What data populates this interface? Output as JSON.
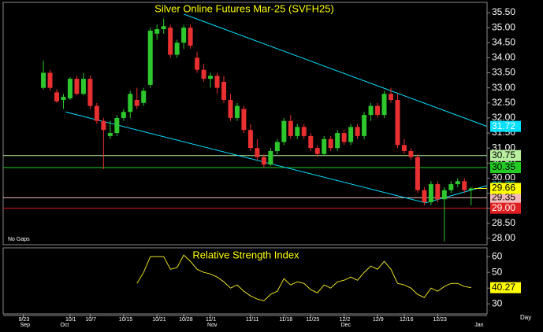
{
  "chart_data": [
    {
      "type": "candlestick",
      "title": "Silver Online Futures Mar-25 (SVFH25)",
      "note": "No Gaps",
      "x_unit": "Day",
      "categories": [
        "9/23",
        null,
        null,
        null,
        null,
        null,
        null,
        "10/1",
        null,
        null,
        "10/7",
        null,
        null,
        null,
        null,
        "10/15",
        null,
        null,
        null,
        null,
        "10/21",
        null,
        null,
        null,
        "10/28",
        null,
        null,
        null,
        "11/1",
        null,
        null,
        null,
        null,
        null,
        "11/11",
        null,
        null,
        null,
        null,
        "11/18",
        null,
        null,
        null,
        "11/25",
        null,
        null,
        null,
        null,
        "12/2",
        null,
        null,
        null,
        null,
        "12/9",
        null,
        null,
        null,
        "12/16",
        null,
        null,
        null,
        null,
        "12/23",
        null,
        null,
        null,
        null,
        null,
        null
      ],
      "months": [
        "Sep",
        null,
        null,
        null,
        null,
        null,
        "Oct",
        null,
        null,
        null,
        null,
        null,
        null,
        null,
        null,
        null,
        null,
        null,
        null,
        null,
        null,
        null,
        null,
        null,
        null,
        null,
        null,
        null,
        "Nov",
        null,
        null,
        null,
        null,
        null,
        null,
        null,
        null,
        null,
        null,
        null,
        null,
        null,
        null,
        null,
        null,
        null,
        null,
        null,
        "Dec",
        null,
        null,
        null,
        null,
        null,
        null,
        null,
        null,
        null,
        null,
        null,
        null,
        null,
        null,
        null,
        null,
        null,
        null,
        null,
        "Jan"
      ],
      "ohlc": [
        null,
        null,
        null,
        [
          33.0,
          33.9,
          32.95,
          33.5
        ],
        [
          33.5,
          33.6,
          32.9,
          33.0
        ],
        [
          32.85,
          32.95,
          32.5,
          32.55
        ],
        [
          32.6,
          32.8,
          32.3,
          32.7
        ],
        [
          32.65,
          33.35,
          32.6,
          33.3
        ],
        [
          33.3,
          33.4,
          32.75,
          32.8
        ],
        [
          32.8,
          33.5,
          32.75,
          33.3
        ],
        [
          33.3,
          33.4,
          32.3,
          32.4
        ],
        [
          32.4,
          32.5,
          31.8,
          31.9
        ],
        [
          31.9,
          32.0,
          30.3,
          31.6
        ],
        [
          31.4,
          31.9,
          31.3,
          31.5
        ],
        [
          31.5,
          32.1,
          31.4,
          32.0
        ],
        [
          32.0,
          32.3,
          31.9,
          32.2
        ],
        [
          32.2,
          32.9,
          32.0,
          32.8
        ],
        [
          32.6,
          33.0,
          32.3,
          32.4
        ],
        [
          32.5,
          33.0,
          32.4,
          32.9
        ],
        [
          33.1,
          35.0,
          33.0,
          34.9
        ],
        [
          34.8,
          35.1,
          34.6,
          34.95
        ],
        [
          34.95,
          35.3,
          34.8,
          35.05
        ],
        [
          35.0,
          35.1,
          34.0,
          34.1
        ],
        [
          34.1,
          34.6,
          34.0,
          34.5
        ],
        [
          34.5,
          35.1,
          34.3,
          35.0
        ],
        [
          35.0,
          35.1,
          34.3,
          34.4
        ],
        [
          34.0,
          34.2,
          33.5,
          33.6
        ],
        [
          33.6,
          33.8,
          33.2,
          33.3
        ],
        [
          33.3,
          33.5,
          33.0,
          33.4
        ],
        [
          33.4,
          33.5,
          32.8,
          33.0
        ],
        [
          33.2,
          33.4,
          32.5,
          32.6
        ],
        [
          32.6,
          32.8,
          31.9,
          32.0
        ],
        [
          32.0,
          32.5,
          31.9,
          32.4
        ],
        [
          32.3,
          32.4,
          31.5,
          31.6
        ],
        [
          31.6,
          31.8,
          30.9,
          31.0
        ],
        [
          31.0,
          31.3,
          30.6,
          30.7
        ],
        [
          30.7,
          30.8,
          30.35,
          30.45
        ],
        [
          30.45,
          31.0,
          30.4,
          30.9
        ],
        [
          30.9,
          31.3,
          30.8,
          31.2
        ],
        [
          31.2,
          32.0,
          31.1,
          31.9
        ],
        [
          31.9,
          32.1,
          31.3,
          31.4
        ],
        [
          31.4,
          31.8,
          31.3,
          31.7
        ],
        [
          31.7,
          31.8,
          31.3,
          31.4
        ],
        [
          31.4,
          31.5,
          30.9,
          31.0
        ],
        [
          31.0,
          31.1,
          30.7,
          30.8
        ],
        [
          30.8,
          31.4,
          30.75,
          31.3
        ],
        [
          31.3,
          31.4,
          30.9,
          31.0
        ],
        [
          31.0,
          31.6,
          30.9,
          31.5
        ],
        [
          31.5,
          31.6,
          31.1,
          31.2
        ],
        [
          31.2,
          31.8,
          31.1,
          31.7
        ],
        [
          31.7,
          31.8,
          31.3,
          31.4
        ],
        [
          31.4,
          32.2,
          31.3,
          32.1
        ],
        [
          32.1,
          32.5,
          31.9,
          32.4
        ],
        [
          32.4,
          32.5,
          32.0,
          32.1
        ],
        [
          32.1,
          32.9,
          32.0,
          32.8
        ],
        [
          32.8,
          33.0,
          32.5,
          32.6
        ],
        [
          32.6,
          32.8,
          31.0,
          31.1
        ],
        [
          31.1,
          31.3,
          30.8,
          30.9
        ],
        [
          30.9,
          31.0,
          30.6,
          30.7
        ],
        [
          30.7,
          30.8,
          29.5,
          29.6
        ],
        [
          29.6,
          29.7,
          29.1,
          29.2
        ],
        [
          29.2,
          29.9,
          29.1,
          29.8
        ],
        [
          29.8,
          29.9,
          29.2,
          29.3
        ],
        [
          29.3,
          29.7,
          27.9,
          29.6
        ],
        [
          29.6,
          29.9,
          29.5,
          29.8
        ],
        [
          29.8,
          30.0,
          29.7,
          29.9
        ],
        [
          29.9,
          30.0,
          29.5,
          29.6
        ],
        [
          29.6,
          29.7,
          29.1,
          29.66
        ],
        null
      ],
      "up_color": "#2ec82e",
      "down_color": "#e83030",
      "last_color": "#ffff00",
      "ylim": [
        27.79,
        35.84
      ],
      "yticks": [
        {
          "value": 28,
          "label": "28.00"
        },
        {
          "value": 28.5,
          "label": "28.50"
        },
        {
          "value": 29,
          "label": "29.00"
        },
        {
          "value": 29.5,
          "label": "29.50"
        },
        {
          "value": 30,
          "label": "30.00"
        },
        {
          "value": 30.5,
          "label": "30.50"
        },
        {
          "value": 31,
          "label": "31.00"
        },
        {
          "value": 31.5,
          "label": "31.50"
        },
        {
          "value": 32,
          "label": "32.00"
        },
        {
          "value": 32.5,
          "label": "32.50"
        },
        {
          "value": 33,
          "label": "33.00"
        },
        {
          "value": 33.5,
          "label": "33.50"
        },
        {
          "value": 34,
          "label": "34.00"
        },
        {
          "value": 34.5,
          "label": "34.50"
        },
        {
          "value": 35,
          "label": "35.00"
        },
        {
          "value": 35.5,
          "label": "35.50"
        }
      ],
      "levels": [
        {
          "value": 30.75,
          "color": "#b8f0a0",
          "text_color": "#000000"
        },
        {
          "value": 30.35,
          "color": "#22cc22",
          "text_color": "#000000"
        },
        {
          "value": 29.35,
          "color": "#f4b8b8",
          "text_color": "#000000"
        },
        {
          "value": 29,
          "label": "29.00",
          "color": "#e02020",
          "text_color": "#ffffff"
        }
      ],
      "trendlines": [
        {
          "x": [
            24,
            69.4
          ],
          "y": [
            35.45,
            31.72
          ],
          "color": "#00e0ff",
          "text_color": "#ffffff"
        },
        {
          "x": [
            6.3,
            60.2
          ],
          "y": [
            32.2,
            29.18
          ],
          "color": "#00e0ff"
        },
        {
          "x": [
            60.2,
            69.4
          ],
          "y": [
            29.18,
            29.75
          ],
          "color": "#00e0ff",
          "text_color": "#00e0ff"
        }
      ]
    },
    {
      "type": "line",
      "title": "Relative Strength Index",
      "color": "#e8e020",
      "values": [
        null,
        null,
        null,
        null,
        null,
        null,
        null,
        null,
        null,
        null,
        null,
        null,
        null,
        null,
        null,
        null,
        null,
        43,
        50,
        60,
        60,
        60,
        52,
        53,
        61,
        57,
        52,
        50,
        49,
        47,
        44,
        40,
        42,
        38,
        35,
        33,
        32,
        36,
        38,
        46,
        42,
        44,
        43,
        39,
        37,
        42,
        40,
        44,
        45,
        47,
        45,
        50,
        54,
        52,
        57,
        52,
        43,
        42,
        40,
        36,
        34,
        40,
        38,
        41,
        43,
        43,
        41,
        40.27,
        null
      ],
      "ylim": [
        23.6,
        65.6
      ],
      "yticks": [
        30,
        40,
        50,
        60
      ]
    }
  ]
}
